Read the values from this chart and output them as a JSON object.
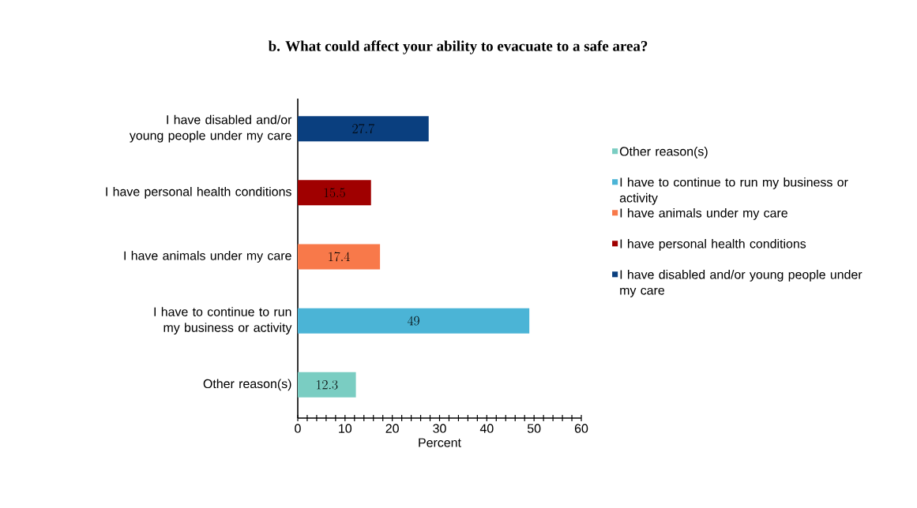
{
  "chart_data": {
    "type": "bar",
    "orientation": "horizontal",
    "title": "b. What could affect your ability to evacuate to a safe area?",
    "xlabel": "Percent",
    "categories": [
      "I have disabled and/or young people under my care",
      "I have personal health conditions",
      "I have animals under my care",
      "I have to continue to run my business or activity",
      "Other reason(s)"
    ],
    "series": [
      {
        "name": "Other reason(s)",
        "color": "#7acdc2",
        "values": [
          null,
          null,
          null,
          null,
          12.3
        ]
      },
      {
        "name": "I have to continue to run my business or activity",
        "color": "#4bb4d6",
        "values": [
          null,
          null,
          null,
          49,
          null
        ]
      },
      {
        "name": "I have animals under my care",
        "color": "#f8794a",
        "values": [
          null,
          null,
          17.4,
          null,
          null
        ]
      },
      {
        "name": "I have personal health conditions",
        "color": "#a00000",
        "values": [
          null,
          15.5,
          null,
          null,
          null
        ]
      },
      {
        "name": "I have disabled and/or young people under my care",
        "color": "#0a3f7f",
        "values": [
          27.7,
          null,
          null,
          null,
          null
        ]
      }
    ],
    "xlim": [
      0,
      60
    ],
    "xticks": [
      0,
      10,
      20,
      30,
      40,
      50,
      60
    ],
    "data_labels": true,
    "legend": "right",
    "grid": false
  }
}
